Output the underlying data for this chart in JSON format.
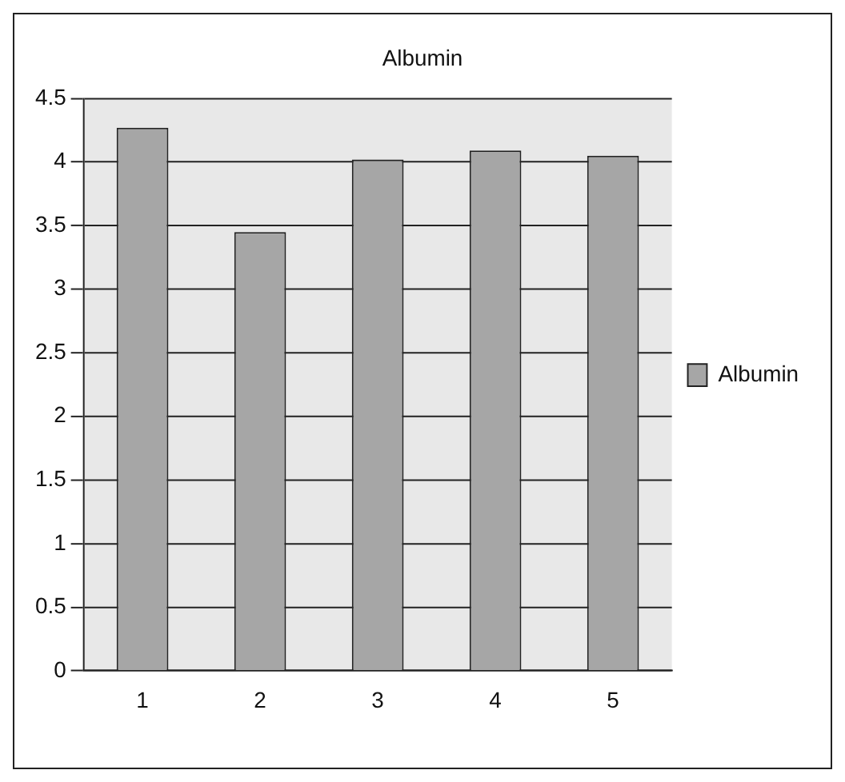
{
  "chart_data": {
    "type": "bar",
    "title": "Albumin",
    "categories": [
      "1",
      "2",
      "3",
      "4",
      "5"
    ],
    "series": [
      {
        "name": "Albumin",
        "color": "#a6a6a6",
        "values": [
          4.27,
          3.45,
          4.02,
          4.09,
          4.05
        ]
      }
    ],
    "ylim": [
      0,
      4.5
    ],
    "yticks": [
      0,
      0.5,
      1,
      1.5,
      2,
      2.5,
      3,
      3.5,
      4,
      4.5
    ],
    "grid": "y",
    "legend": "right"
  }
}
